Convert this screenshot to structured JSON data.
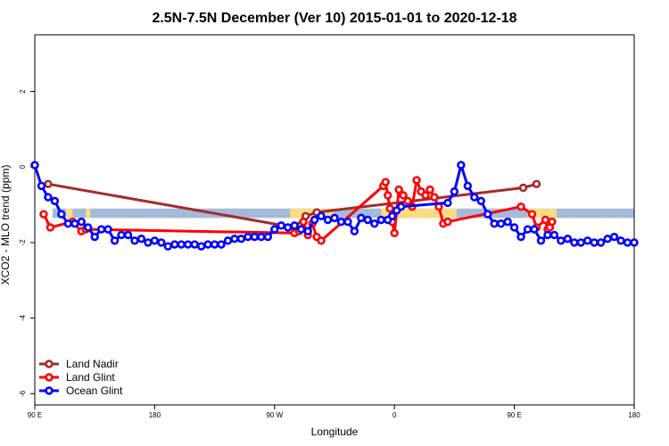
{
  "chart_data": {
    "type": "line",
    "title": "2.5N-7.5N December (Ver 10)   2015-01-01 to 2020-12-18",
    "xlabel": "Longitude",
    "ylabel": "XCO2 - MLO trend (ppm)",
    "xlim": [
      -90,
      180
    ],
    "ylim": [
      -6.3,
      3.5
    ],
    "x_ticks": [
      {
        "value": -90,
        "label": "90 E"
      },
      {
        "value": -36,
        "label": "180"
      },
      {
        "value": 18,
        "label": "90 W"
      },
      {
        "value": 72,
        "label": "0"
      },
      {
        "value": 126,
        "label": "90 E"
      },
      {
        "value": 180,
        "label": "180"
      }
    ],
    "y_ticks": [
      {
        "value": -6,
        "label": "-6"
      },
      {
        "value": -4,
        "label": "-4"
      },
      {
        "value": -2,
        "label": "-2"
      },
      {
        "value": 0,
        "label": "0"
      },
      {
        "value": 2,
        "label": "2"
      }
    ],
    "band": {
      "range": [
        -1.35,
        -1.1
      ],
      "start": -82,
      "color": "#a3bbd9"
    },
    "highlights": [
      {
        "from": -76,
        "to": -73,
        "color": "#fadc87"
      },
      {
        "from": -67,
        "to": -65,
        "color": "#fadc87"
      },
      {
        "from": 25,
        "to": 45,
        "color": "#fadc87"
      },
      {
        "from": 66,
        "to": 100,
        "color": "#fadc87"
      },
      {
        "from": 132,
        "to": 145,
        "color": "#fadc87"
      }
    ],
    "legend_position": "bottom-left",
    "series": [
      {
        "name": "Land Nadir",
        "color": "#a52a2a",
        "x": [
          -84,
          27,
          32,
          37,
          130,
          136
        ],
        "y": [
          -0.45,
          -1.6,
          -1.3,
          -1.2,
          -0.55,
          -0.45
        ]
      },
      {
        "name": "Land Glint",
        "color": "#ff0000",
        "x": [
          -86,
          -83,
          -73,
          -69,
          -67,
          27,
          29,
          31,
          33,
          35,
          37,
          39,
          67,
          68,
          69,
          70,
          71,
          72,
          74,
          76,
          78,
          80,
          82,
          84,
          86,
          88,
          90,
          92,
          94,
          96,
          129,
          134,
          136,
          140,
          141,
          142,
          143
        ],
        "y": [
          -1.25,
          -1.6,
          -1.45,
          -1.7,
          -1.65,
          -1.75,
          -1.7,
          -1.45,
          -1.8,
          -1.5,
          -1.85,
          -1.95,
          -0.5,
          -0.4,
          -0.75,
          -1.1,
          -1.45,
          -1.75,
          -0.6,
          -0.75,
          -0.9,
          -1.05,
          -0.35,
          -0.65,
          -0.75,
          -0.6,
          -0.8,
          -1.05,
          -1.5,
          -1.45,
          -1.05,
          -1.25,
          -1.6,
          -1.4,
          -1.65,
          -1.6,
          -1.45
        ]
      },
      {
        "name": "Ocean Glint",
        "color": "#0000ff",
        "x": [
          -90,
          -87,
          -84,
          -81,
          -78,
          -75,
          -72,
          -69,
          -66,
          -63,
          -60,
          -57,
          -54,
          -51,
          -48,
          -45,
          -42,
          -39,
          -36,
          -33,
          -30,
          -27,
          -24,
          -21,
          -18,
          -15,
          -12,
          -9,
          -6,
          -3,
          0,
          3,
          6,
          9,
          12,
          15,
          18,
          21,
          24,
          27,
          30,
          33,
          36,
          39,
          42,
          45,
          48,
          51,
          54,
          57,
          60,
          63,
          66,
          69,
          71,
          73,
          75,
          96,
          99,
          102,
          105,
          108,
          111,
          114,
          117,
          120,
          123,
          126,
          129,
          132,
          135,
          138,
          141,
          144,
          147,
          150,
          153,
          156,
          159,
          162,
          165,
          168,
          171,
          174,
          177,
          180
        ],
        "y": [
          0.05,
          -0.5,
          -0.8,
          -0.9,
          -1.25,
          -1.5,
          -1.5,
          -1.45,
          -1.6,
          -1.85,
          -1.65,
          -1.65,
          -1.95,
          -1.8,
          -1.8,
          -1.95,
          -1.9,
          -2.0,
          -1.95,
          -2.0,
          -2.1,
          -2.05,
          -2.05,
          -2.05,
          -2.05,
          -2.1,
          -2.05,
          -2.05,
          -2.05,
          -1.95,
          -1.9,
          -1.9,
          -1.85,
          -1.85,
          -1.85,
          -1.85,
          -1.65,
          -1.55,
          -1.6,
          -1.55,
          -1.65,
          -1.7,
          -1.4,
          -1.3,
          -1.4,
          -1.35,
          -1.45,
          -1.45,
          -1.7,
          -1.35,
          -1.4,
          -1.5,
          -1.4,
          -1.4,
          -1.3,
          -1.15,
          -1.05,
          -0.95,
          -0.65,
          0.05,
          -0.5,
          -0.8,
          -0.9,
          -1.25,
          -1.5,
          -1.5,
          -1.45,
          -1.6,
          -1.85,
          -1.65,
          -1.65,
          -1.95,
          -1.8,
          -1.8,
          -1.95,
          -1.9,
          -2.0,
          -2.0,
          -1.95,
          -2.0,
          -2.0,
          -1.9,
          -1.85,
          -1.95,
          -2.0,
          -2.0
        ],
        "note": ""
      }
    ]
  }
}
